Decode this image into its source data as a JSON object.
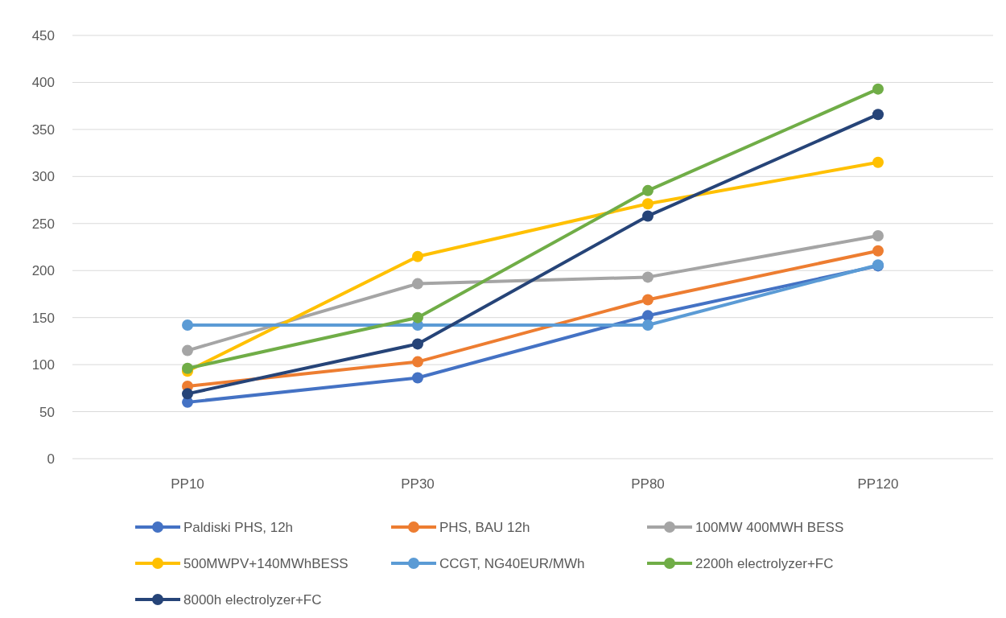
{
  "chart_data": {
    "type": "line",
    "categories": [
      "PP10",
      "PP30",
      "PP80",
      "PP120"
    ],
    "series": [
      {
        "name": "Paldiski PHS, 12h",
        "color": "#4472c4",
        "values": [
          60,
          86,
          152,
          205
        ]
      },
      {
        "name": "PHS, BAU 12h",
        "color": "#ed7d31",
        "values": [
          77,
          103,
          169,
          221
        ]
      },
      {
        "name": "100MW 400MWH BESS",
        "color": "#a5a5a5",
        "values": [
          115,
          186,
          193,
          237
        ]
      },
      {
        "name": "500MWPV+140MWhBESS",
        "color": "#ffc000",
        "values": [
          93,
          215,
          271,
          315
        ]
      },
      {
        "name": "CCGT, NG40EUR/MWh",
        "color": "#5b9bd5",
        "values": [
          142,
          142,
          142,
          206
        ]
      },
      {
        "name": "2200h electrolyzer+FC",
        "color": "#70ad47",
        "values": [
          96,
          150,
          285,
          393
        ]
      },
      {
        "name": "8000h electrolyzer+FC",
        "color": "#264478",
        "values": [
          69,
          122,
          258,
          366
        ]
      }
    ],
    "ylim": [
      0,
      450
    ],
    "yticks": [
      0,
      50,
      100,
      150,
      200,
      250,
      300,
      350,
      400,
      450
    ],
    "grid": "y",
    "legend": "bottom",
    "marker": "circle",
    "line_style": "solid"
  }
}
